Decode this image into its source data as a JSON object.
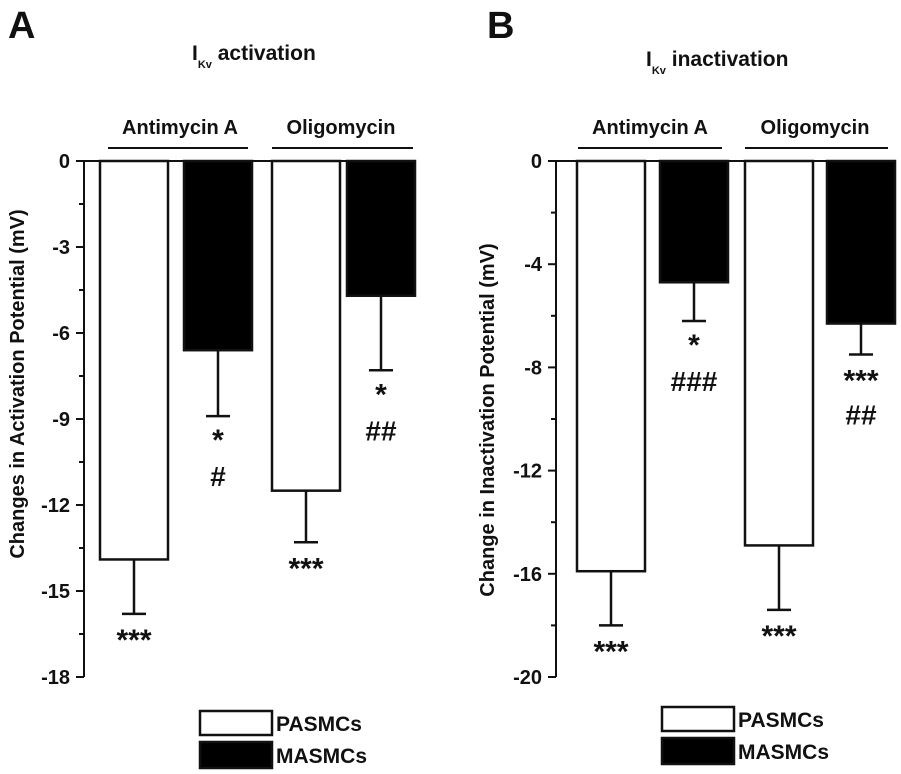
{
  "colors": {
    "pasmcs": "#ffffff",
    "masmcs": "#000000",
    "stroke": "#111111"
  },
  "legend": {
    "items": [
      {
        "label": "PASMCs",
        "color": "#ffffff"
      },
      {
        "label": "MASMCs",
        "color": "#000000"
      }
    ]
  },
  "chart_data": [
    {
      "type": "bar",
      "panel_label": "A",
      "title_main": "I",
      "title_sub": "Kv",
      "title_rest": " activation",
      "ylabel": "Changes in Activation Potential (mV)",
      "ylim": [
        -18,
        0
      ],
      "yticks": [
        0,
        -3,
        -6,
        -9,
        -12,
        -15,
        -18
      ],
      "yticklabels": [
        "0",
        "-3",
        "-6",
        "-9",
        "-12",
        "-15",
        "-18"
      ],
      "groups": [
        "Antimycin A",
        "Oligomycin"
      ],
      "series": [
        {
          "name": "PASMCs",
          "values": [
            -13.9,
            -11.5
          ],
          "errors": [
            1.9,
            1.8
          ],
          "annotations": [
            [
              "***"
            ],
            [
              "***"
            ]
          ]
        },
        {
          "name": "MASMCs",
          "values": [
            -6.6,
            -4.7
          ],
          "errors": [
            2.3,
            2.6
          ],
          "annotations": [
            [
              "*",
              "#"
            ],
            [
              "*",
              "##"
            ]
          ]
        }
      ]
    },
    {
      "type": "bar",
      "panel_label": "B",
      "title_main": "I",
      "title_sub": "Kv",
      "title_rest": " inactivation",
      "ylabel": "Change in Inactivation Potential (mV)",
      "ylim": [
        -20,
        0
      ],
      "yticks": [
        0,
        -4,
        -8,
        -12,
        -16,
        -20
      ],
      "yticklabels": [
        "0",
        "-4",
        "-8",
        "-12",
        "-16",
        "-20"
      ],
      "groups": [
        "Antimycin A",
        "Oligomycin"
      ],
      "series": [
        {
          "name": "PASMCs",
          "values": [
            -15.9,
            -14.9
          ],
          "errors": [
            2.1,
            2.5
          ],
          "annotations": [
            [
              "***"
            ],
            [
              "***"
            ]
          ]
        },
        {
          "name": "MASMCs",
          "values": [
            -4.7,
            -6.3
          ],
          "errors": [
            1.5,
            1.2
          ],
          "annotations": [
            [
              "*",
              "###"
            ],
            [
              "***",
              "##"
            ]
          ]
        }
      ]
    }
  ]
}
